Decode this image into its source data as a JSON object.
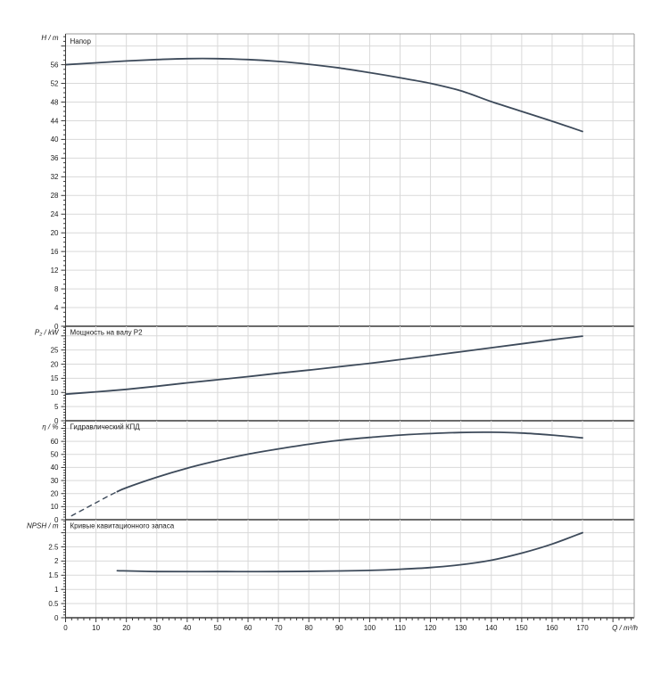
{
  "figure": {
    "background": "#ffffff",
    "colors": {
      "curve": "#3d4a5a",
      "grid": "#d9d9d9",
      "frame": "#9a9a9a",
      "axis": "#3a3a3a",
      "text": "#1a1a1a"
    },
    "x_axis": {
      "label": "Q / m³/h",
      "lim": [
        0,
        187
      ],
      "tick_step": 10,
      "tick_label_max": 170,
      "minor_step": 2,
      "tick_labels": [
        "0",
        "10",
        "20",
        "30",
        "40",
        "50",
        "60",
        "70",
        "80",
        "90",
        "100",
        "110",
        "120",
        "130",
        "140",
        "150",
        "160",
        "170"
      ]
    }
  },
  "chart_data": [
    {
      "id": "head",
      "type": "line",
      "title": "Напор",
      "ylabel": "H / m",
      "ylim": [
        0,
        62.6
      ],
      "ytick_step": 4,
      "ytick_label_max": 56,
      "ygrid_max": 60,
      "yminor_step": 1,
      "ytick_labels": [
        "0",
        "4",
        "8",
        "12",
        "16",
        "20",
        "24",
        "28",
        "32",
        "36",
        "40",
        "44",
        "48",
        "52",
        "56"
      ],
      "series": [
        {
          "name": "H(Q)",
          "style": "solid",
          "points": [
            [
              0,
              56.0
            ],
            [
              10,
              56.4
            ],
            [
              20,
              56.8
            ],
            [
              30,
              57.1
            ],
            [
              40,
              57.3
            ],
            [
              50,
              57.3
            ],
            [
              60,
              57.1
            ],
            [
              70,
              56.7
            ],
            [
              80,
              56.1
            ],
            [
              90,
              55.3
            ],
            [
              100,
              54.3
            ],
            [
              110,
              53.2
            ],
            [
              120,
              52.0
            ],
            [
              130,
              50.4
            ],
            [
              140,
              48.1
            ],
            [
              150,
              46.0
            ],
            [
              160,
              43.9
            ],
            [
              170,
              41.7
            ]
          ]
        }
      ]
    },
    {
      "id": "power",
      "type": "line",
      "title": "Мощность на валу P2",
      "ylabel": "P₂ / kW",
      "ylim": [
        0,
        33.4
      ],
      "ytick_step": 5,
      "ytick_label_max": 25,
      "ygrid_max": 30,
      "yminor_step": 1,
      "ytick_labels": [
        "0",
        "5",
        "10",
        "15",
        "20",
        "25"
      ],
      "series": [
        {
          "name": "P2(Q)",
          "style": "solid",
          "points": [
            [
              0,
              9.4
            ],
            [
              10,
              10.2
            ],
            [
              20,
              11.1
            ],
            [
              30,
              12.2
            ],
            [
              40,
              13.4
            ],
            [
              50,
              14.5
            ],
            [
              60,
              15.6
            ],
            [
              70,
              16.8
            ],
            [
              80,
              17.9
            ],
            [
              90,
              19.1
            ],
            [
              100,
              20.3
            ],
            [
              110,
              21.6
            ],
            [
              120,
              23.0
            ],
            [
              130,
              24.4
            ],
            [
              140,
              25.8
            ],
            [
              150,
              27.2
            ],
            [
              160,
              28.6
            ],
            [
              170,
              29.9
            ]
          ]
        }
      ]
    },
    {
      "id": "efficiency",
      "type": "line",
      "title": "Гидравлический КПД",
      "ylabel": "η / %",
      "ylim": [
        0,
        75.8
      ],
      "ytick_step": 10,
      "ytick_label_max": 60,
      "ygrid_max": 70,
      "yminor_step": 2,
      "ytick_labels": [
        "0",
        "10",
        "20",
        "30",
        "40",
        "50",
        "60"
      ],
      "series": [
        {
          "name": "eta(Q) low-flow (dashed)",
          "style": "dashed",
          "points": [
            [
              2,
              3
            ],
            [
              6,
              8
            ],
            [
              10,
              13
            ],
            [
              14,
              18
            ],
            [
              17,
              21.5
            ]
          ]
        },
        {
          "name": "eta(Q)",
          "style": "solid",
          "points": [
            [
              17,
              21.5
            ],
            [
              20,
              24.5
            ],
            [
              30,
              32.5
            ],
            [
              40,
              39.5
            ],
            [
              50,
              45.3
            ],
            [
              60,
              50.2
            ],
            [
              70,
              54.2
            ],
            [
              80,
              57.8
            ],
            [
              90,
              60.8
            ],
            [
              100,
              63.0
            ],
            [
              110,
              64.8
            ],
            [
              120,
              66.0
            ],
            [
              130,
              66.8
            ],
            [
              140,
              67.0
            ],
            [
              150,
              66.4
            ],
            [
              160,
              64.8
            ],
            [
              170,
              62.7
            ]
          ]
        }
      ]
    },
    {
      "id": "npsh",
      "type": "line",
      "title": "Кривые кавитационного запаса",
      "ylabel": "NPSH / m",
      "ylim": [
        0,
        3.46
      ],
      "ytick_step": 0.5,
      "ytick_label_max": 2.5,
      "ygrid_max": 3,
      "yminor_step": 0.1,
      "ytick_labels": [
        "0",
        "0.5",
        "1",
        "1.5",
        "2",
        "2.5"
      ],
      "series": [
        {
          "name": "NPSH(Q)",
          "style": "solid",
          "points": [
            [
              17,
              1.66
            ],
            [
              30,
              1.63
            ],
            [
              50,
              1.63
            ],
            [
              70,
              1.63
            ],
            [
              90,
              1.65
            ],
            [
              100,
              1.67
            ],
            [
              110,
              1.71
            ],
            [
              120,
              1.77
            ],
            [
              130,
              1.87
            ],
            [
              140,
              2.03
            ],
            [
              150,
              2.28
            ],
            [
              160,
              2.6
            ],
            [
              170,
              3.0
            ]
          ]
        }
      ]
    }
  ]
}
